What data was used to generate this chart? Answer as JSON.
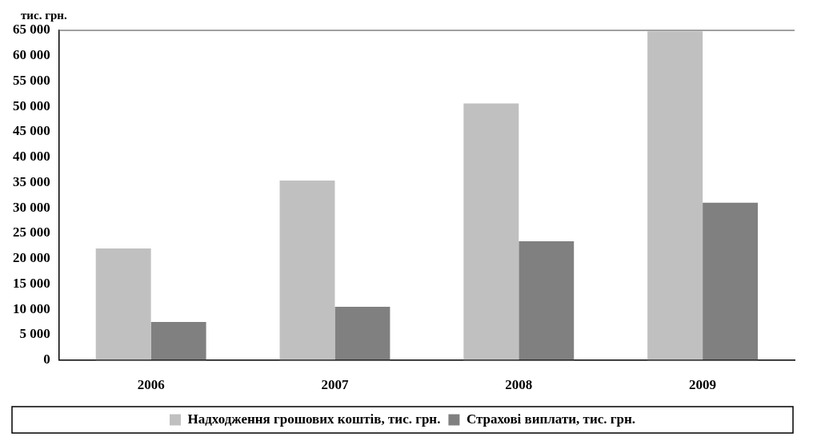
{
  "chart_data": {
    "type": "bar",
    "ylabel": "тис. грн.",
    "categories": [
      "2006",
      "2007",
      "2008",
      "2009"
    ],
    "series": [
      {
        "name": "Надходження грошових коштів, тис. грн.",
        "color": "#c0c0c0",
        "values": [
          22000,
          35400,
          50600,
          64800
        ]
      },
      {
        "name": "Страхові виплати, тис. грн.",
        "color": "#808080",
        "values": [
          7500,
          10500,
          23400,
          31000
        ]
      }
    ],
    "ylim": [
      0,
      65000
    ],
    "yticks": [
      {
        "value": 0,
        "label": "0"
      },
      {
        "value": 5000,
        "label": "5 000"
      },
      {
        "value": 10000,
        "label": "10 000"
      },
      {
        "value": 15000,
        "label": "15 000"
      },
      {
        "value": 20000,
        "label": "20 000"
      },
      {
        "value": 25000,
        "label": "25 000"
      },
      {
        "value": 30000,
        "label": "30 000"
      },
      {
        "value": 35000,
        "label": "35 000"
      },
      {
        "value": 40000,
        "label": "40 000"
      },
      {
        "value": 45000,
        "label": "45 000"
      },
      {
        "value": 50000,
        "label": "50 000"
      },
      {
        "value": 55000,
        "label": "55 000"
      },
      {
        "value": 60000,
        "label": "60 000"
      },
      {
        "value": 65000,
        "label": "65 000"
      }
    ],
    "grid": false,
    "legend": "bottom"
  }
}
